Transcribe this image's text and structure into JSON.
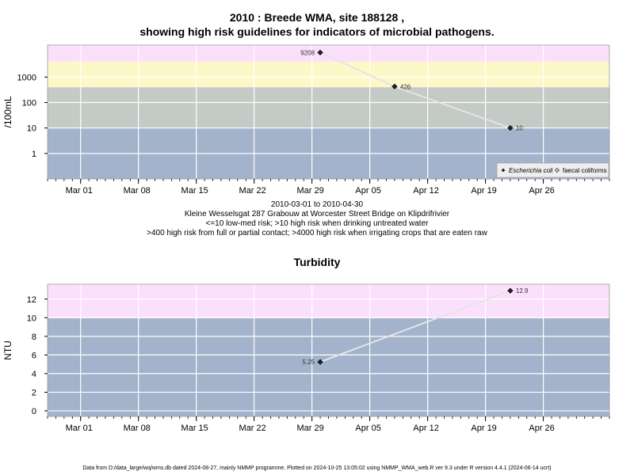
{
  "chart_data": [
    {
      "type": "line",
      "title": "2010 : Breede WMA, site 188128 ,",
      "subtitle": "showing high risk guidelines for indicators of microbial pathogens.",
      "ylabel": "/100mL",
      "yscale": "log",
      "yticks": [
        1,
        10,
        100,
        1000
      ],
      "ytick_labels": [
        "1",
        "10",
        "100",
        "1000"
      ],
      "ylim": [
        0.1,
        18000
      ],
      "xlim": [
        "2010-02-25",
        "2010-05-04"
      ],
      "xticks": [
        "2010-03-01",
        "2010-03-08",
        "2010-03-15",
        "2010-03-22",
        "2010-03-29",
        "2010-04-05",
        "2010-04-12",
        "2010-04-19",
        "2010-04-26"
      ],
      "xtick_labels": [
        "Mar 01",
        "Mar 08",
        "Mar 15",
        "Mar 22",
        "Mar 29",
        "Apr 05",
        "Apr 12",
        "Apr 19",
        "Apr 26"
      ],
      "bands": [
        {
          "from": 0.1,
          "to": 10,
          "color": "#a3b3cb"
        },
        {
          "from": 10,
          "to": 400,
          "color": "#c4cbc6"
        },
        {
          "from": 400,
          "to": 4000,
          "color": "#fdf8c8"
        },
        {
          "from": 4000,
          "to": 18000,
          "color": "#fbe0fb"
        }
      ],
      "series": [
        {
          "name": "Escherichia coli",
          "marker": "filled-diamond",
          "points": [
            {
              "x": "2010-03-30",
              "y": 9208,
              "label": "9208"
            },
            {
              "x": "2010-04-08",
              "y": 426,
              "label": "426"
            },
            {
              "x": "2010-04-22",
              "y": 10,
              "label": "10"
            }
          ]
        },
        {
          "name": "faecal coliforms",
          "marker": "open-diamond",
          "points": []
        }
      ],
      "legend": {
        "placement": "bottom-right",
        "entries": [
          "Escherichia coli",
          "faecal coliforms"
        ]
      },
      "grid": true
    },
    {
      "type": "line",
      "title": "Turbidity",
      "ylabel": "NTU",
      "yscale": "linear",
      "yticks": [
        0,
        2,
        4,
        6,
        8,
        10,
        12
      ],
      "ytick_labels": [
        "0",
        "2",
        "4",
        "6",
        "8",
        "10",
        "12"
      ],
      "ylim": [
        -0.6,
        13.6
      ],
      "xlim": [
        "2010-02-25",
        "2010-05-04"
      ],
      "xticks": [
        "2010-03-01",
        "2010-03-08",
        "2010-03-15",
        "2010-03-22",
        "2010-03-29",
        "2010-04-05",
        "2010-04-12",
        "2010-04-19",
        "2010-04-26"
      ],
      "xtick_labels": [
        "Mar 01",
        "Mar 08",
        "Mar 15",
        "Mar 22",
        "Mar 29",
        "Apr 05",
        "Apr 12",
        "Apr 19",
        "Apr 26"
      ],
      "bands": [
        {
          "from": -0.6,
          "to": 10,
          "color": "#a3b3cb"
        },
        {
          "from": 10,
          "to": 13.6,
          "color": "#fbe0fb"
        }
      ],
      "series": [
        {
          "name": "",
          "marker": "filled-diamond",
          "points": [
            {
              "x": "2010-03-30",
              "y": 5.25,
              "label": "5.25"
            },
            {
              "x": "2010-04-22",
              "y": 12.9,
              "label": "12.9"
            }
          ]
        }
      ],
      "grid": true
    }
  ],
  "caption": {
    "date_range": "2010-03-01 to 2010-04-30",
    "site": "Kleine Wesselsgat 287 Grabouw at Worcester Street Bridge on Klipdrifrivier",
    "guideline1": "<=10 low-med risk; >10 high risk when drinking untreated water",
    "guideline2": ">400 high risk from full or partial contact; >4000 high risk when irrigating crops that are eaten raw"
  },
  "footer": "Data from D:/data_large/wq/wms.db dated 2024-08-27, mainly NMMP programme. Plotted on 2024-10-25 13:05:02 using NMMP_WMA_web.R ver 9.3 under R version 4.4.1 (2024-06-14 ucrt)"
}
